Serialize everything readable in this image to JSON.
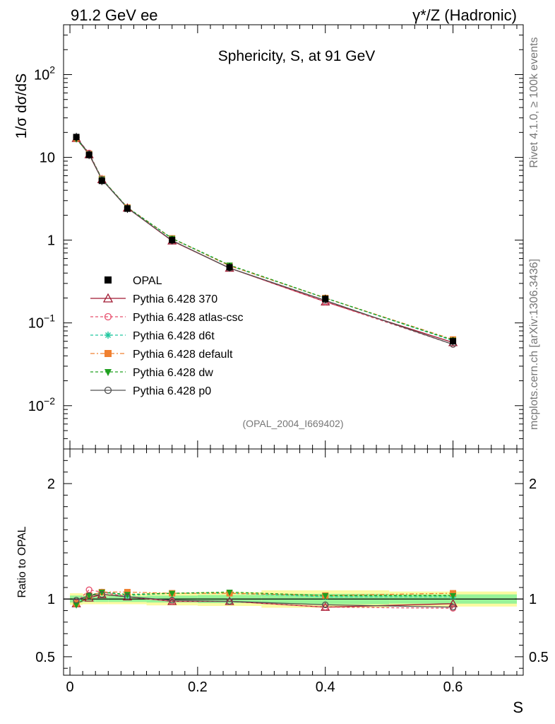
{
  "header": {
    "left": "91.2 GeV ee",
    "right": "γ*/Z (Hadronic)"
  },
  "side_labels": {
    "rivet": "Rivet 4.1.0, ≥ 100k events",
    "mcplots": "mcplots.cern.ch [arXiv:1306.3436]"
  },
  "chart_data": [
    {
      "type": "line",
      "yscale": "log",
      "title": "Sphericity, S, at 91 GeV",
      "ylabel": "1/σ  dσ/dS",
      "xlabel": "S",
      "xlim": [
        -0.01,
        0.71
      ],
      "ylim": [
        0.003,
        400
      ],
      "yticks": [
        {
          "v": 0.01,
          "base": "10",
          "exp": "−2"
        },
        {
          "v": 0.1,
          "base": "10",
          "exp": "−1"
        },
        {
          "v": 1,
          "text": "1"
        },
        {
          "v": 10,
          "text": "10"
        },
        {
          "v": 100,
          "base": "10",
          "exp": "2"
        }
      ],
      "analysis_tag": "(OPAL_2004_I669402)",
      "x": [
        0.01,
        0.03,
        0.05,
        0.09,
        0.16,
        0.25,
        0.4,
        0.6
      ],
      "data": {
        "name": "OPAL",
        "values": [
          17.6,
          10.7,
          5.2,
          2.4,
          1.0,
          0.47,
          0.195,
          0.06
        ]
      },
      "series": [
        {
          "name": "Pythia 6.428 370",
          "color": "#a01830",
          "dash": "",
          "marker": "triangle-open",
          "values": [
            17.0,
            10.8,
            5.4,
            2.45,
            0.98,
            0.46,
            0.18,
            0.058
          ]
        },
        {
          "name": "Pythia 6.428 atlas-csc",
          "color": "#e8506e",
          "dash": "4,3",
          "marker": "circle-open",
          "values": [
            17.2,
            11.3,
            5.5,
            2.45,
            0.98,
            0.46,
            0.18,
            0.055
          ]
        },
        {
          "name": "Pythia 6.428 d6t",
          "color": "#22c8a0",
          "dash": "4,3",
          "marker": "star",
          "values": [
            17.0,
            11.0,
            5.5,
            2.48,
            1.05,
            0.49,
            0.2,
            0.061
          ]
        },
        {
          "name": "Pythia 6.428 default",
          "color": "#f08030",
          "dash": "6,3,2,3",
          "marker": "square",
          "values": [
            17.0,
            11.0,
            5.5,
            2.48,
            1.05,
            0.49,
            0.2,
            0.063
          ]
        },
        {
          "name": "Pythia 6.428 dw",
          "color": "#20a020",
          "dash": "4,3",
          "marker": "triangle-down",
          "values": [
            16.7,
            11.0,
            5.5,
            2.48,
            1.05,
            0.5,
            0.2,
            0.062
          ]
        },
        {
          "name": "Pythia 6.428 p0",
          "color": "#505050",
          "dash": "",
          "marker": "circle-open",
          "values": [
            17.5,
            11.0,
            5.4,
            2.45,
            0.99,
            0.46,
            0.187,
            0.055
          ]
        }
      ]
    },
    {
      "type": "line",
      "title": "",
      "ylabel": "Ratio to OPAL",
      "xlabel": "S",
      "xlim": [
        -0.01,
        0.71
      ],
      "ylim": [
        0.34,
        2.3
      ],
      "yticks": [
        0.5,
        1,
        2
      ],
      "ytick_labels": [
        "0.5",
        "1",
        "2"
      ],
      "xticks": [
        0,
        0.2,
        0.4,
        0.6
      ],
      "xtick_labels": [
        "0",
        "0.2",
        "0.4",
        "0.6"
      ],
      "bins": [
        {
          "lo": 0.0,
          "hi": 0.02,
          "green": 0.03,
          "yellow": 0.05
        },
        {
          "lo": 0.02,
          "hi": 0.04,
          "green": 0.025,
          "yellow": 0.045
        },
        {
          "lo": 0.04,
          "hi": 0.06,
          "green": 0.025,
          "yellow": 0.045
        },
        {
          "lo": 0.06,
          "hi": 0.12,
          "green": 0.025,
          "yellow": 0.045
        },
        {
          "lo": 0.12,
          "hi": 0.2,
          "green": 0.03,
          "yellow": 0.055
        },
        {
          "lo": 0.2,
          "hi": 0.3,
          "green": 0.035,
          "yellow": 0.06
        },
        {
          "lo": 0.3,
          "hi": 0.5,
          "green": 0.045,
          "yellow": 0.075
        },
        {
          "lo": 0.5,
          "hi": 0.7,
          "green": 0.04,
          "yellow": 0.065
        }
      ],
      "x": [
        0.01,
        0.03,
        0.05,
        0.09,
        0.16,
        0.25,
        0.4,
        0.6
      ],
      "series": [
        {
          "name": "Pythia 6.428 370",
          "values": [
            0.96,
            1.01,
            1.04,
            1.02,
            0.98,
            0.98,
            0.93,
            0.96
          ]
        },
        {
          "name": "Pythia 6.428 atlas-csc",
          "values": [
            0.97,
            1.08,
            1.06,
            1.02,
            0.98,
            0.98,
            0.93,
            0.92
          ]
        },
        {
          "name": "Pythia 6.428 d6t",
          "values": [
            0.96,
            1.03,
            1.06,
            1.03,
            1.05,
            1.05,
            1.02,
            1.02
          ]
        },
        {
          "name": "Pythia 6.428 default",
          "values": [
            0.96,
            1.03,
            1.06,
            1.06,
            1.05,
            1.05,
            1.03,
            1.05
          ]
        },
        {
          "name": "Pythia 6.428 dw",
          "values": [
            0.95,
            1.03,
            1.06,
            1.04,
            1.05,
            1.06,
            1.03,
            1.03
          ]
        },
        {
          "name": "Pythia 6.428 p0",
          "values": [
            0.99,
            1.03,
            1.04,
            1.02,
            0.99,
            0.98,
            0.95,
            0.93
          ]
        }
      ]
    }
  ]
}
